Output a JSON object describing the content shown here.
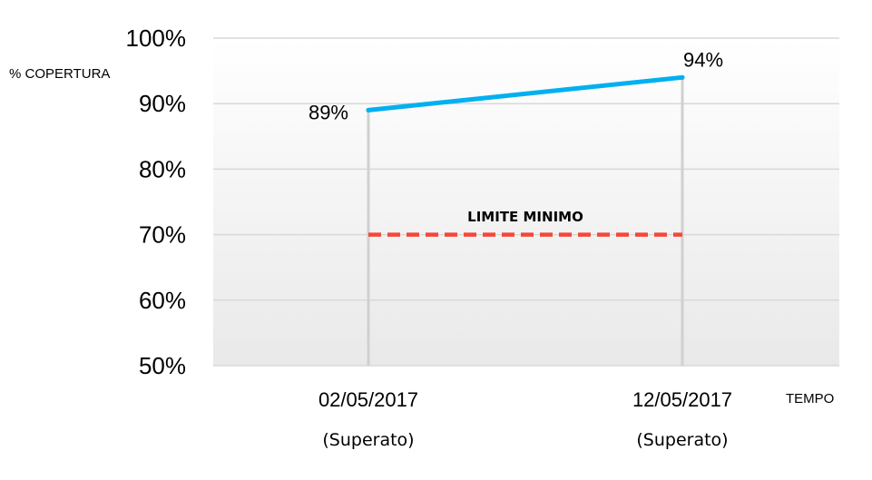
{
  "chart_data": {
    "type": "line",
    "title": "",
    "xlabel": "TEMPO",
    "ylabel": "% COPERTURA",
    "ylim": [
      50,
      100
    ],
    "y_ticks": [
      "50%",
      "60%",
      "70%",
      "80%",
      "90%",
      "100%"
    ],
    "y_tick_values": [
      50,
      60,
      70,
      80,
      90,
      100
    ],
    "categories": [
      "02/05/2017",
      "12/05/2017"
    ],
    "category_notes": [
      "(Superato)",
      "(Superato)"
    ],
    "series": [
      {
        "name": "% copertura",
        "values": [
          89,
          94
        ],
        "data_labels": [
          "89%",
          "94%"
        ],
        "color": "#00B0F0"
      }
    ],
    "threshold": {
      "label": "LIMITE MINIMO",
      "value": 70,
      "color": "#F4473A",
      "style": "dashed"
    },
    "grid": true,
    "legend": "none"
  }
}
